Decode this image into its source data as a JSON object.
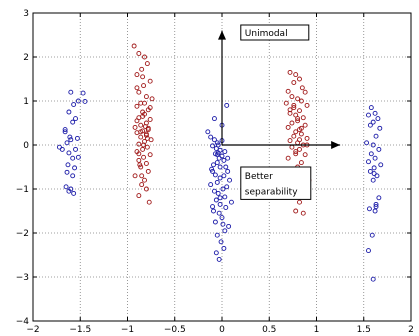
{
  "chart_data": {
    "type": "scatter",
    "title": "",
    "xlabel": "",
    "ylabel": "",
    "xlim": [
      -2,
      2
    ],
    "ylim": [
      -4,
      3
    ],
    "grid": true,
    "legend": "none",
    "xticks": [
      "−2",
      "−1.5",
      "−1",
      "−0.5",
      "0",
      "0.5",
      "1",
      "1.5",
      "2"
    ],
    "yticks": [
      "−4",
      "−3",
      "−2",
      "−1",
      "0",
      "1",
      "2",
      "3"
    ],
    "xtick_values": [
      -2,
      -1.5,
      -1,
      -0.5,
      0,
      0.5,
      1,
      1.5,
      2
    ],
    "ytick_values": [
      -4,
      -3,
      -2,
      -1,
      0,
      1,
      2,
      3
    ],
    "colors": {
      "blue": "#1a1aa8",
      "red": "#a01818",
      "grid": "#808080",
      "axis": "#000000"
    },
    "series": [
      {
        "color": "blue",
        "x": [
          -1.47,
          -1.52,
          -1.57,
          -1.45,
          -1.62,
          -1.58,
          -1.66,
          -1.61,
          -1.53,
          -1.6,
          -1.64,
          -1.55,
          -1.69,
          -1.62,
          -1.58,
          -1.52,
          -1.63,
          -1.56,
          -1.64,
          -1.58,
          -1.72,
          -1.65,
          -1.6,
          -1.57,
          -1.62,
          -1.66,
          -1.55,
          -1.6,
          -0.15,
          -0.12,
          -0.08,
          -0.05,
          -0.1,
          -0.06,
          -0.02,
          -0.04,
          0.0,
          -0.07,
          -0.03,
          0.02,
          -0.05,
          -0.09,
          0.04,
          -0.11,
          0.06,
          0.02,
          -0.02,
          0.08,
          -0.05,
          -0.12,
          0.05,
          0.01,
          -0.08,
          -0.04,
          0.03,
          -0.06,
          0.1,
          -0.02,
          0.04,
          -0.09,
          -0.03,
          0.0,
          -0.07,
          0.07,
          -0.1,
          0.03,
          -0.05,
          -0.01,
          0.02,
          -0.06,
          0.05,
          -0.08,
          0.0,
          -0.04,
          -0.02,
          0.06,
          -0.1,
          0.01,
          -0.03,
          0.0,
          -0.05,
          -0.07,
          0.03,
          -0.02,
          1.58,
          1.62,
          1.55,
          1.65,
          1.6,
          1.57,
          1.67,
          1.63,
          1.53,
          1.6,
          1.66,
          1.58,
          1.62,
          1.55,
          1.68,
          1.61,
          1.57,
          1.64,
          1.6,
          1.66,
          1.63,
          1.56,
          1.62,
          1.59,
          1.6,
          1.55,
          1.63,
          1.61
        ],
        "y": [
          1.18,
          1.0,
          0.92,
          0.99,
          0.75,
          0.52,
          0.3,
          0.18,
          0.15,
          0.12,
          0.05,
          -0.1,
          -0.1,
          -0.18,
          -0.3,
          -0.28,
          -0.45,
          -0.52,
          -0.62,
          -0.7,
          -0.05,
          -0.95,
          -1.0,
          -1.1,
          -1.05,
          0.35,
          0.6,
          1.2,
          0.3,
          0.18,
          0.12,
          0.05,
          -0.02,
          -0.08,
          -0.12,
          -0.18,
          -0.25,
          -0.2,
          -0.3,
          -0.35,
          -0.4,
          -0.45,
          -0.5,
          -0.55,
          -0.6,
          -0.7,
          -0.75,
          -0.8,
          -0.85,
          -0.9,
          -0.95,
          -1.0,
          -1.05,
          -1.1,
          -1.18,
          -1.25,
          -1.3,
          -1.35,
          -1.42,
          -1.5,
          -1.55,
          -1.65,
          -1.75,
          -1.85,
          -1.4,
          -1.95,
          -2.05,
          -2.2,
          -2.35,
          -2.45,
          0.9,
          0.6,
          0.45,
          0.0,
          -0.5,
          -0.3,
          -0.6,
          -1.8,
          -2.6,
          0.1,
          -0.22,
          -0.68,
          -0.15,
          -1.2,
          0.85,
          0.72,
          0.68,
          0.6,
          0.52,
          0.45,
          0.38,
          0.2,
          0.05,
          0.0,
          -0.1,
          -0.2,
          -0.3,
          -0.38,
          -0.45,
          -0.52,
          -0.6,
          -0.7,
          -0.8,
          -1.2,
          -1.35,
          -1.45,
          -1.5,
          -2.05,
          -3.05,
          -2.4,
          -1.4,
          -0.65
        ],
        "name": ""
      },
      {
        "color": "red",
        "x": [
          -0.93,
          -0.88,
          -0.82,
          -0.79,
          -0.85,
          -0.9,
          -0.76,
          -0.83,
          -0.88,
          -0.8,
          -0.74,
          -0.86,
          -0.9,
          -0.78,
          -0.84,
          -0.82,
          -0.88,
          -0.76,
          -0.8,
          -0.86,
          -0.92,
          -0.78,
          -0.84,
          -0.9,
          -0.8,
          -0.86,
          -0.75,
          -0.82,
          -0.88,
          -0.79,
          -0.84,
          -0.9,
          -0.76,
          -0.83,
          -0.88,
          -0.8,
          -0.86,
          -0.78,
          -0.92,
          -0.82,
          -0.85,
          -0.8,
          -0.88,
          -0.77,
          -0.84,
          -0.9,
          -0.81,
          -0.86,
          -0.79,
          -0.83,
          -0.88,
          -0.9,
          -0.76,
          -0.84,
          -0.8,
          -0.87,
          -0.82,
          -0.78,
          -0.85,
          0.72,
          0.78,
          0.82,
          0.76,
          0.85,
          0.7,
          0.88,
          0.74,
          0.8,
          0.84,
          0.68,
          0.9,
          0.76,
          0.82,
          0.72,
          0.78,
          0.86,
          0.8,
          0.74,
          0.88,
          0.7,
          0.82,
          0.78,
          0.84,
          0.76,
          0.9,
          0.72,
          0.8,
          0.86,
          0.74,
          0.82,
          0.78,
          0.88,
          0.7,
          0.84,
          0.8,
          0.76,
          0.92,
          0.74,
          0.82,
          0.78,
          0.86,
          0.72,
          0.8,
          0.84,
          0.9,
          0.76,
          0.82,
          0.78
        ],
        "y": [
          2.25,
          2.08,
          2.0,
          1.85,
          1.72,
          1.6,
          1.45,
          1.35,
          1.2,
          1.1,
          1.05,
          0.95,
          0.88,
          0.8,
          0.75,
          0.7,
          0.62,
          0.58,
          0.5,
          0.45,
          0.4,
          0.38,
          0.32,
          0.28,
          0.22,
          0.18,
          0.12,
          0.08,
          0.02,
          -0.05,
          -0.1,
          -0.15,
          -0.22,
          -0.28,
          -0.35,
          -0.42,
          -0.5,
          -0.6,
          -0.7,
          -0.8,
          -0.9,
          -1.0,
          -1.15,
          -1.3,
          0.65,
          0.55,
          0.42,
          0.3,
          0.15,
          0.0,
          -0.2,
          1.3,
          0.85,
          1.55,
          0.25,
          -0.45,
          0.95,
          0.35,
          -0.7,
          1.65,
          1.6,
          1.5,
          1.42,
          1.3,
          1.22,
          1.2,
          1.1,
          1.05,
          1.0,
          0.95,
          0.9,
          0.85,
          0.78,
          0.72,
          0.68,
          0.62,
          0.55,
          0.5,
          0.45,
          0.4,
          0.35,
          0.3,
          0.25,
          0.2,
          0.15,
          0.1,
          0.05,
          0.0,
          -0.05,
          -0.1,
          -0.15,
          -0.22,
          -0.3,
          -0.4,
          -0.5,
          -0.62,
          -0.8,
          -0.9,
          -1.3,
          -1.5,
          -1.55,
          0.8,
          0.6,
          0.38,
          0.0,
          0.9,
          0.12,
          -0.2
        ],
        "name": ""
      }
    ],
    "arrows": [
      {
        "from": [
          0,
          0
        ],
        "to": [
          0,
          2.6
        ]
      },
      {
        "from": [
          0,
          0
        ],
        "to": [
          1.25,
          0
        ]
      }
    ],
    "annotations": [
      {
        "text": "Unimodal",
        "x": 0.22,
        "y": 2.5
      },
      {
        "text": "Better",
        "x": 0.22,
        "y": -0.75
      },
      {
        "text": "separability",
        "x": 0.22,
        "y": -1.1
      }
    ]
  }
}
